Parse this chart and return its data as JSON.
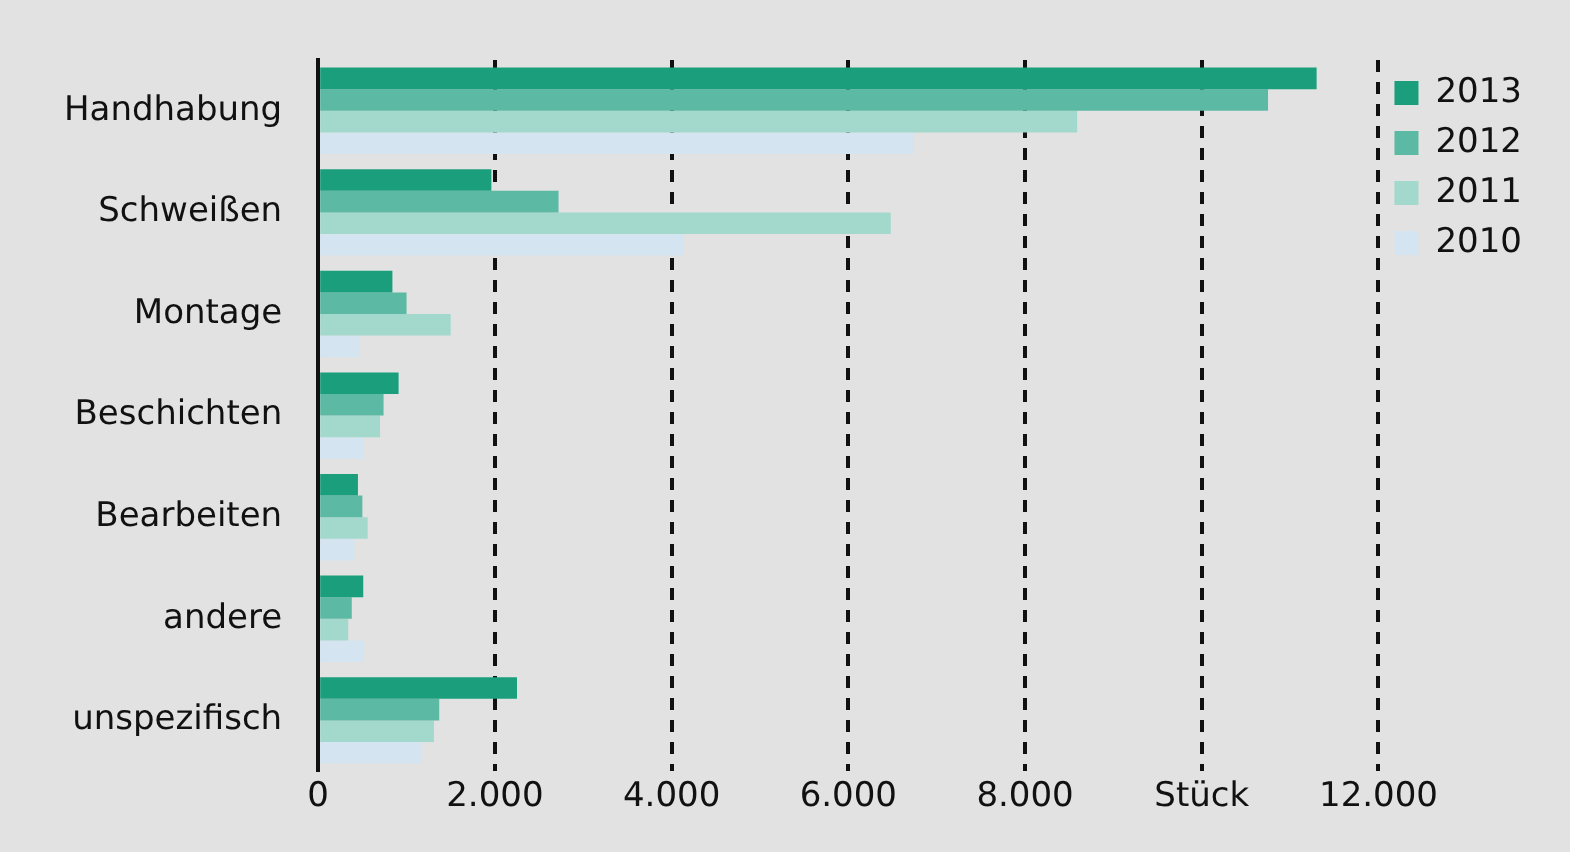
{
  "chart_data": {
    "type": "bar",
    "orientation": "horizontal",
    "categories": [
      "Handhabung",
      "Schweißen",
      "Montage",
      "Beschichten",
      "Bearbeiten",
      "andere",
      "unspezifisch"
    ],
    "series": [
      {
        "name": "2013",
        "color": "#1a9e7c",
        "values": [
          11300,
          1960,
          840,
          910,
          450,
          510,
          2250
        ]
      },
      {
        "name": "2012",
        "color": "#5cb9a4",
        "values": [
          10750,
          2720,
          1000,
          740,
          500,
          380,
          1370
        ]
      },
      {
        "name": "2011",
        "color": "#a3d8cc",
        "values": [
          8590,
          6480,
          1500,
          700,
          560,
          340,
          1310
        ]
      },
      {
        "name": "2010",
        "color": "#d4e4f0",
        "values": [
          6740,
          4130,
          460,
          510,
          410,
          520,
          1170
        ]
      }
    ],
    "xlim": [
      0,
      12000
    ],
    "xticks": [
      0,
      {
        "value": 2000,
        "label": "2.000"
      },
      {
        "value": 4000,
        "label": "4.000"
      },
      {
        "value": 6000,
        "label": "6.000"
      },
      {
        "value": 8000,
        "label": "8.000"
      },
      {
        "value": 10000,
        "label": "Stück"
      },
      {
        "value": 12000,
        "label": "12.000"
      }
    ],
    "grid": "x",
    "legend": "top right",
    "line_style": "dashed"
  }
}
